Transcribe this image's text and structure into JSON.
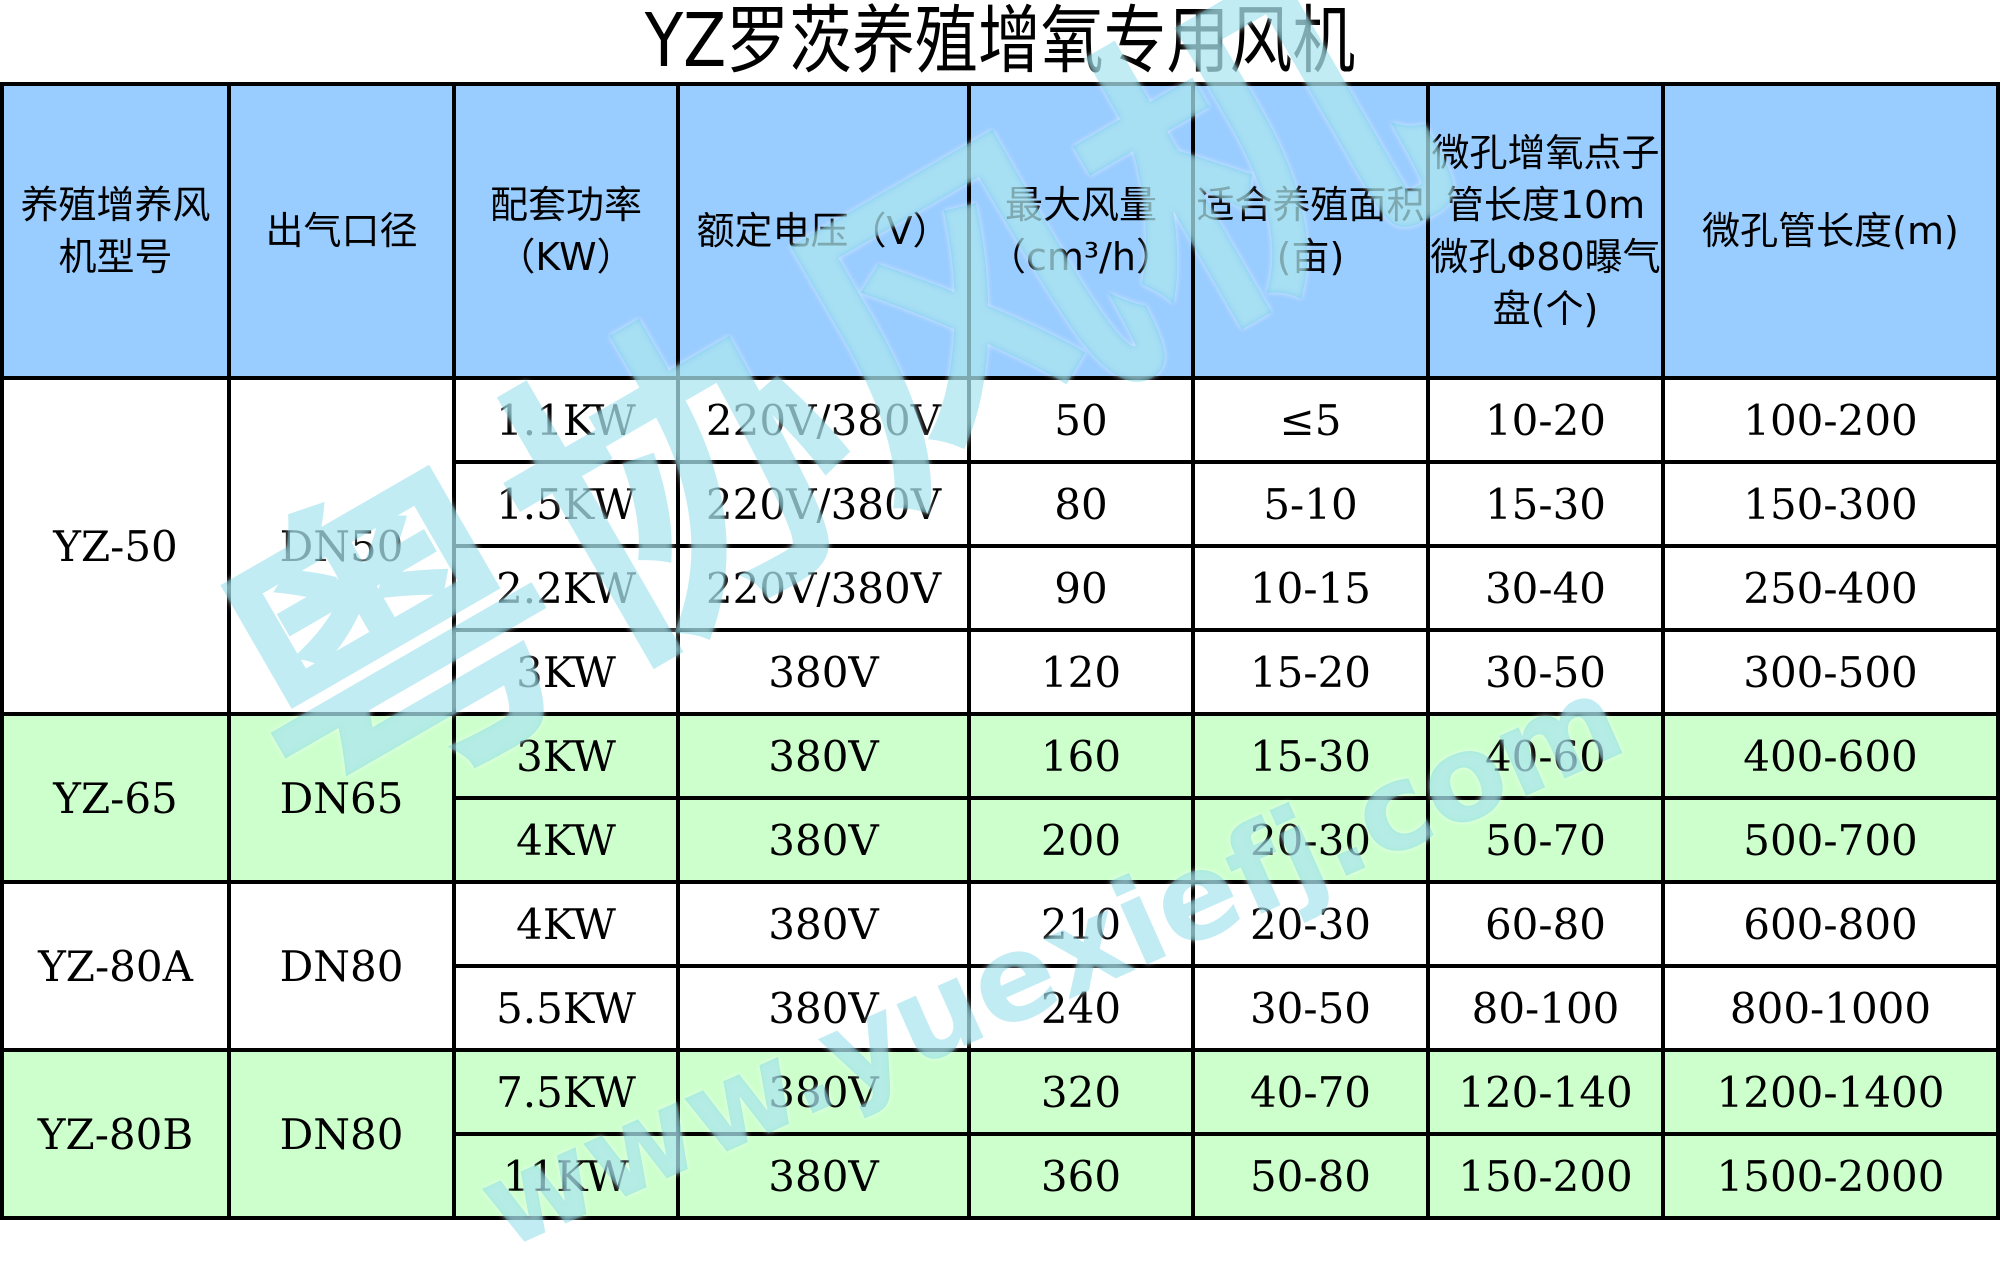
{
  "title": "YZ罗茨养殖增氧专用风机",
  "headers": [
    "养殖增养风机型号",
    "出气口径",
    "配套功率（KW）",
    "额定电压（V）",
    "最大风量（cm³/h）",
    "适合养殖面积(亩)",
    "微孔增氧点子管长度10m微孔Φ80曝气盘(个)",
    "微孔管长度(m)"
  ],
  "groups": [
    {
      "model": "YZ-50",
      "outlet": "DN50",
      "bg": "#ffffff",
      "rows": [
        [
          "1.1KW",
          "220V/380V",
          "50",
          "≤5",
          "10-20",
          "100-200"
        ],
        [
          "1.5KW",
          "220V/380V",
          "80",
          "5-10",
          "15-30",
          "150-300"
        ],
        [
          "2.2KW",
          "220V/380V",
          "90",
          "10-15",
          "30-40",
          "250-400"
        ],
        [
          "3KW",
          "380V",
          "120",
          "15-20",
          "30-50",
          "300-500"
        ]
      ]
    },
    {
      "model": "YZ-65",
      "outlet": "DN65",
      "bg": "#ccffcc",
      "rows": [
        [
          "3KW",
          "380V",
          "160",
          "15-30",
          "40-60",
          "400-600"
        ],
        [
          "4KW",
          "380V",
          "200",
          "20-30",
          "50-70",
          "500-700"
        ]
      ]
    },
    {
      "model": "YZ-80A",
      "outlet": "DN80",
      "bg": "#ffffff",
      "rows": [
        [
          "4KW",
          "380V",
          "210",
          "20-30",
          "60-80",
          "600-800"
        ],
        [
          "5.5KW",
          "380V",
          "240",
          "30-50",
          "80-100",
          "800-1000"
        ]
      ]
    },
    {
      "model": "YZ-80B",
      "outlet": "DN80",
      "bg": "#ccffcc",
      "rows": [
        [
          "7.5KW",
          "380V",
          "320",
          "40-70",
          "120-140",
          "1200-1400"
        ],
        [
          "11KW",
          "380V",
          "360",
          "50-80",
          "150-200",
          "1500-2000"
        ]
      ]
    }
  ],
  "colors": {
    "header": "#99ccff",
    "green_rows": "#ccffcc"
  },
  "watermark": {
    "logo": "粤协风机",
    "url": "www.yuexiefj.com"
  }
}
